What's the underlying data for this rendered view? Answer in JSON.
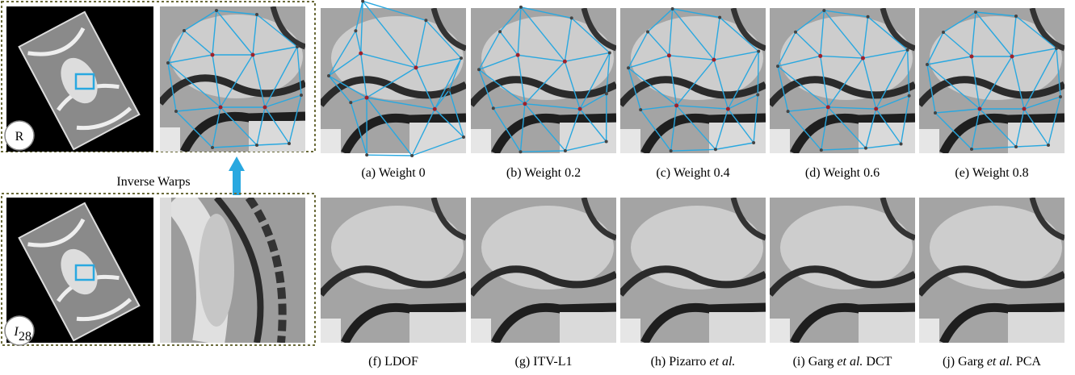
{
  "left_panel": {
    "reference_label": "R",
    "target_label": {
      "symbol": "I",
      "subscript": "28"
    },
    "arrow_label": "Inverse Warps"
  },
  "captions": [
    [
      "(a) Weight 0"
    ],
    [
      "(b) Weight 0.2"
    ],
    [
      "(c) Weight 0.4"
    ],
    [
      "(d) Weight 0.6"
    ],
    [
      "(e) Weight 0.8"
    ],
    [
      "(f) LDOF"
    ],
    [
      "(g) ITV-L1"
    ],
    [
      "(h) Pizarro ",
      {
        "text": "et al.",
        "style": "italic"
      }
    ],
    [
      "(i) Garg ",
      {
        "text": "et al.",
        "style": "italic"
      },
      " DCT"
    ],
    [
      "(j) Garg ",
      {
        "text": "et al.",
        "style": "italic"
      },
      " PCA"
    ]
  ]
}
